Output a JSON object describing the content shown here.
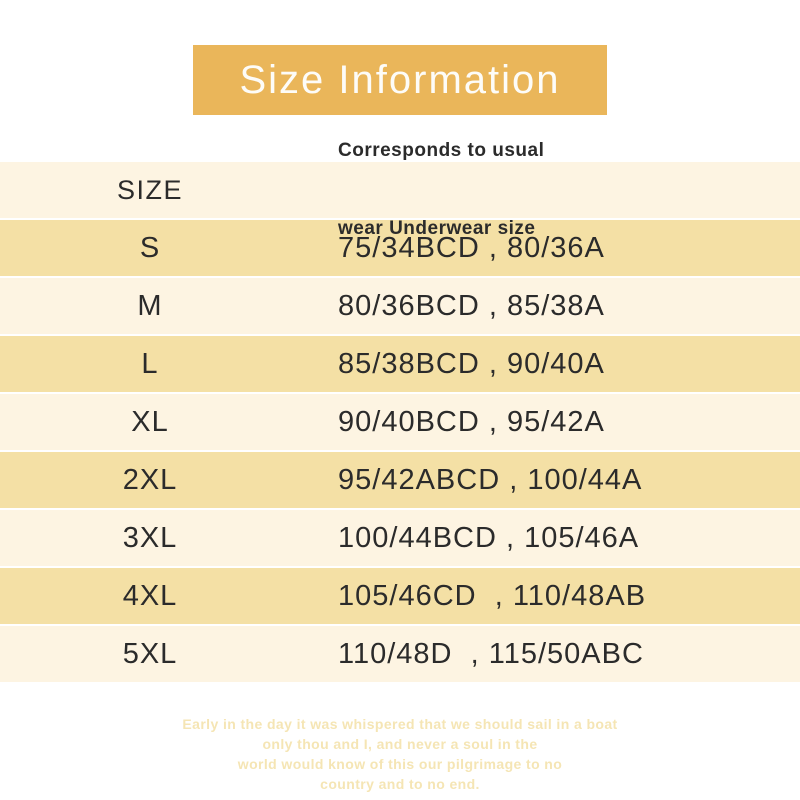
{
  "banner": {
    "title": "Size Information"
  },
  "table": {
    "header": {
      "size_label": "SIZE",
      "fit_label_line1": "Corresponds to usual",
      "fit_label_line2": "wear Underwear size"
    }
  },
  "chart_data": {
    "type": "table",
    "title": "Size Information",
    "columns": [
      "SIZE",
      "Corresponds to usual wear Underwear size"
    ],
    "rows": [
      [
        "S",
        "75/34BCD , 80/36A"
      ],
      [
        "M",
        "80/36BCD , 85/38A"
      ],
      [
        "L",
        "85/38BCD , 90/40A"
      ],
      [
        "XL",
        "90/40BCD , 95/42A"
      ],
      [
        "2XL",
        "95/42ABCD , 100/44A"
      ],
      [
        "3XL",
        "100/44BCD , 105/46A"
      ],
      [
        "4XL",
        "105/46CD  , 110/48AB"
      ],
      [
        "5XL",
        "110/48D  , 115/50ABC"
      ]
    ],
    "layout_hints": {
      "row_striping": "rows S, L, 2XL, 4XL dark gold; header and rows M, XL, 3XL, 5XL light cream",
      "column_2_alignment": "left"
    }
  },
  "footer": {
    "lines": [
      "Early in the day it was whispered that we should sail in a boat",
      "only thou and I, and never a soul in the",
      "world would know of this our pilgrimage to no",
      "country and to no end."
    ]
  },
  "colors": {
    "page_bg": "#FFFFFF",
    "banner_bg": "#EAB65A",
    "banner_text": "#FDFCF8",
    "row_light": "#FDF4E2",
    "row_dark": "#F4E0A5",
    "text_dark": "#2B2B2B",
    "footer_text": "#F5E5B4"
  }
}
